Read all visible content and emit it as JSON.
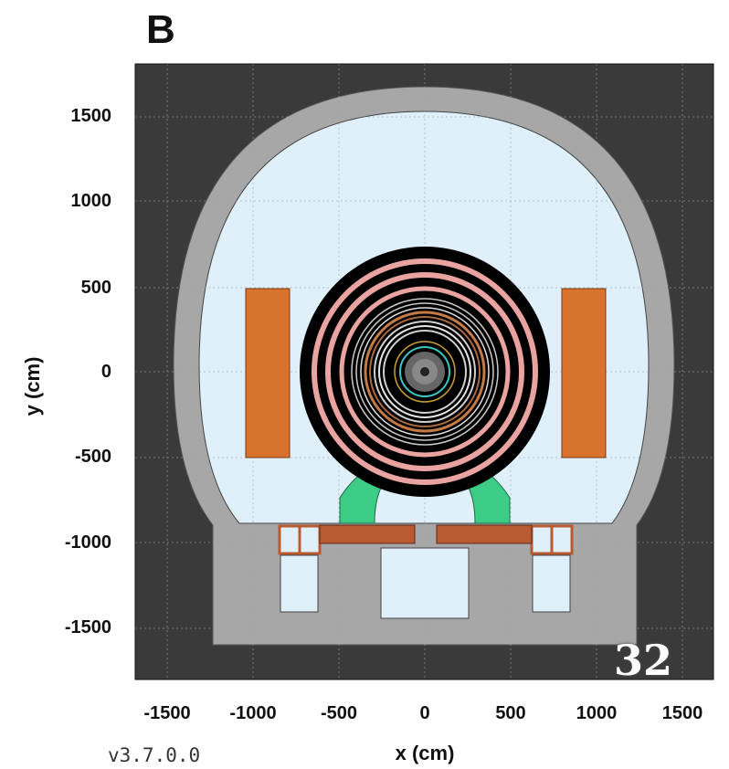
{
  "panel_label": "B",
  "version": "v3.7.0.0",
  "badge": "32",
  "axes": {
    "xlabel": "x (cm)",
    "ylabel": "y (cm)",
    "xticks": [
      "-1500",
      "-1000",
      "-500",
      "0",
      "500",
      "1000",
      "1500"
    ],
    "yticks": [
      "1500",
      "1000",
      "500",
      "0",
      "-500",
      "-1000",
      "-1500"
    ],
    "xlim": [
      -1720,
      1720
    ],
    "ylim": [
      -1790,
      1790
    ]
  },
  "colors": {
    "background": "#3a3a3a",
    "rock": "#a7a7a7",
    "air": "#dff0fb",
    "magnet": "#d8732e",
    "support": "#3dcc86",
    "platform": "#b95a33",
    "barrel": "#000000",
    "muon_ring": "#e9a3a0"
  }
}
